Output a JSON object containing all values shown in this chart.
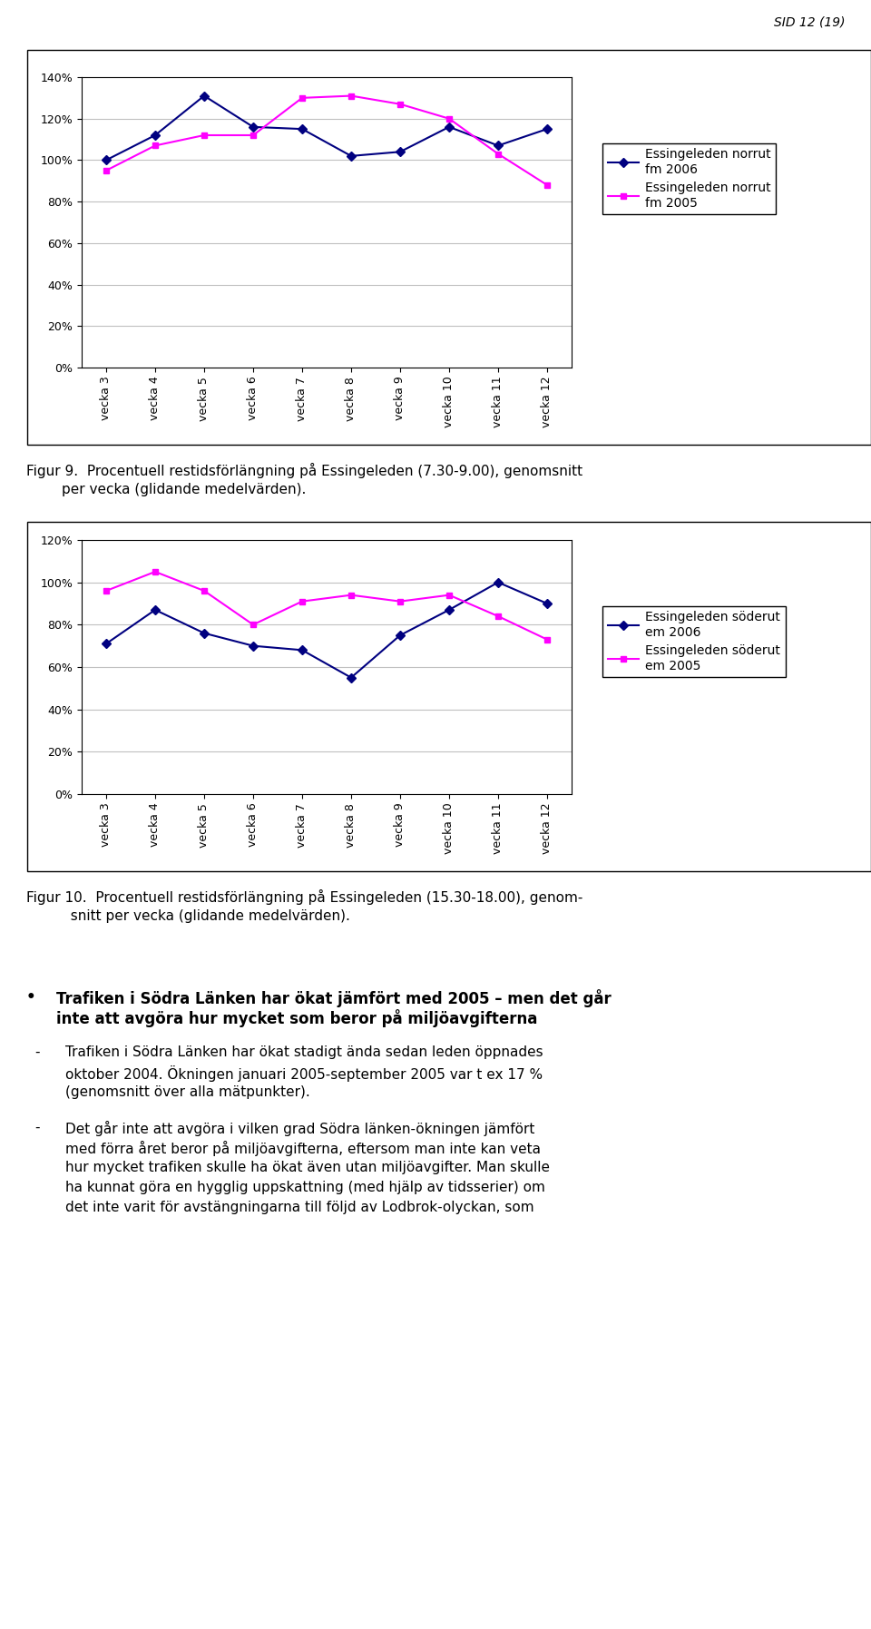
{
  "page_header": "SID 12 (19)",
  "chart1": {
    "x_labels": [
      "vecka 3",
      "vecka 4",
      "vecka 5",
      "vecka 6",
      "vecka 7",
      "vecka 8",
      "vecka 9",
      "vecka 10",
      "vecka 11",
      "vecka 12"
    ],
    "series1_label": "Essingeleden norrut\nfm 2006",
    "series1_color": "#000080",
    "series1_values": [
      1.0,
      1.12,
      1.31,
      1.16,
      1.15,
      1.02,
      1.04,
      1.16,
      1.07,
      1.15
    ],
    "series2_label": "Essingeleden norrut\nfm 2005",
    "series2_color": "#FF00FF",
    "series2_values": [
      0.95,
      1.07,
      1.12,
      1.12,
      1.3,
      1.31,
      1.27,
      1.2,
      1.03,
      0.88
    ],
    "ylim": [
      0.0,
      1.4
    ],
    "yticks": [
      0.0,
      0.2,
      0.4,
      0.6,
      0.8,
      1.0,
      1.2,
      1.4
    ],
    "ytick_labels": [
      "0%",
      "20%",
      "40%",
      "60%",
      "80%",
      "100%",
      "120%",
      "140%"
    ]
  },
  "fig9_caption_line1": "Figur 9.  Procentuell restidsförlängning på Essingeleden (7.30-9.00), genomsnitt",
  "fig9_caption_line2": "        per vecka (glidande medelvärden).",
  "chart2": {
    "x_labels": [
      "vecka 3",
      "vecka 4",
      "vecka 5",
      "vecka 6",
      "vecka 7",
      "vecka 8",
      "vecka 9",
      "vecka 10",
      "vecka 11",
      "vecka 12"
    ],
    "series1_label": "Essingeleden söderut\nem 2006",
    "series1_color": "#000080",
    "series1_values": [
      0.71,
      0.87,
      0.76,
      0.7,
      0.68,
      0.55,
      0.75,
      0.87,
      1.0,
      0.9
    ],
    "series2_label": "Essingeleden söderut\nem 2005",
    "series2_color": "#FF00FF",
    "series2_values": [
      0.96,
      1.05,
      0.96,
      0.8,
      0.91,
      0.94,
      0.91,
      0.94,
      0.84,
      0.73
    ],
    "ylim": [
      0.0,
      1.2
    ],
    "yticks": [
      0.0,
      0.2,
      0.4,
      0.6,
      0.8,
      1.0,
      1.2
    ],
    "ytick_labels": [
      "0%",
      "20%",
      "40%",
      "60%",
      "80%",
      "100%",
      "120%"
    ]
  },
  "fig10_caption_line1": "Figur 10.  Procentuell restidsförlängning på Essingeleden (15.30-18.00), genom-",
  "fig10_caption_line2": "          snitt per vecka (glidande medelvärden).",
  "bullet_symbol": "•",
  "bullet_title": "Trafiken i Södra Länken har ökat jämfört med 2005 – men det går",
  "bullet_title2": "inte att avgöra hur mycket som beror på miljöavgifterna",
  "dash1": "-",
  "bullet_text1_line1": "Trafiken i Södra Länken har ökat stadigt ända sedan leden öppnades",
  "bullet_text1_line2": "oktober 2004. Ökningen januari 2005-september 2005 var t ex 17 %",
  "bullet_text1_line3": "(genomsnitt över alla mätpunkter).",
  "dash2": "-",
  "bullet_text2_line1": "Det går inte att avgöra i vilken grad Södra länken-ökningen jämfört",
  "bullet_text2_line2": "med förra året beror på miljöavgifterna, eftersom man inte kan veta",
  "bullet_text2_line3": "hur mycket trafiken skulle ha ökat även utan miljöavgifter. Man skulle",
  "bullet_text2_line4": "ha kunnat göra en hygglig uppskattning (med hjälp av tidsserier) om",
  "bullet_text2_line5": "det inte varit för avstängningarna till följd av Lodbrok-olyckan, som"
}
